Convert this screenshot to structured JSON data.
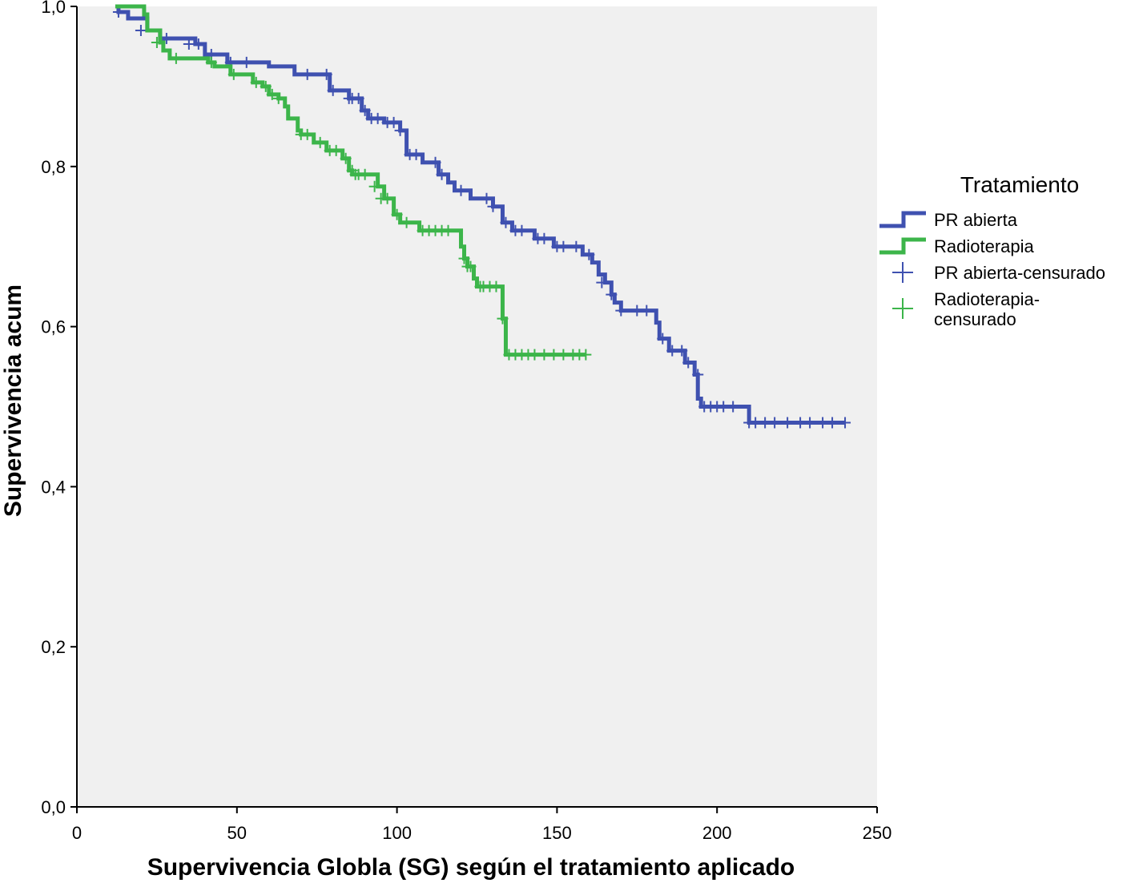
{
  "chart_data": {
    "type": "line",
    "subtype": "kaplan-meier step",
    "title": "",
    "xlabel": "Supervivencia Globla (SG) según el tratamiento aplicado",
    "ylabel": "Supervivencia acum",
    "xlim": [
      0,
      250
    ],
    "ylim": [
      0.0,
      1.0
    ],
    "x_ticks": [
      0,
      50,
      100,
      150,
      200,
      250
    ],
    "x_tick_labels": [
      "0",
      "50",
      "100",
      "150",
      "200",
      "250"
    ],
    "y_ticks": [
      0.0,
      0.2,
      0.4,
      0.6,
      0.8,
      1.0
    ],
    "y_tick_labels": [
      "0,0",
      "0,2",
      "0,4",
      "0,6",
      "0,8",
      "1,0"
    ],
    "grid": false,
    "plot_background": "#f0f0f0",
    "legend": {
      "title": "Tratamiento",
      "position": "right",
      "entries": [
        {
          "label": "PR abierta",
          "kind": "line",
          "color": "#3f51b0"
        },
        {
          "label": "Radioterapia",
          "kind": "line",
          "color": "#3cb54a"
        },
        {
          "label": "PR abierta-censurado",
          "kind": "marker",
          "color": "#3f51b0"
        },
        {
          "label_lines": [
            "Radioterapia-",
            "censurado"
          ],
          "kind": "marker",
          "color": "#3cb54a"
        }
      ]
    },
    "series": [
      {
        "name": "PR abierta",
        "color": "#3f51b0",
        "steps": [
          [
            12,
            1.0
          ],
          [
            13,
            0.993
          ],
          [
            16,
            0.985
          ],
          [
            22,
            0.97
          ],
          [
            26,
            0.96
          ],
          [
            37,
            0.953
          ],
          [
            40,
            0.94
          ],
          [
            47,
            0.93
          ],
          [
            60,
            0.925
          ],
          [
            68,
            0.915
          ],
          [
            79,
            0.895
          ],
          [
            85,
            0.885
          ],
          [
            89,
            0.87
          ],
          [
            91,
            0.86
          ],
          [
            96,
            0.855
          ],
          [
            101,
            0.845
          ],
          [
            103,
            0.815
          ],
          [
            108,
            0.805
          ],
          [
            113,
            0.79
          ],
          [
            116,
            0.78
          ],
          [
            118,
            0.77
          ],
          [
            123,
            0.76
          ],
          [
            130,
            0.75
          ],
          [
            133,
            0.73
          ],
          [
            136,
            0.72
          ],
          [
            143,
            0.71
          ],
          [
            149,
            0.7
          ],
          [
            158,
            0.69
          ],
          [
            161,
            0.68
          ],
          [
            163,
            0.665
          ],
          [
            165,
            0.655
          ],
          [
            167,
            0.64
          ],
          [
            168,
            0.63
          ],
          [
            170,
            0.62
          ],
          [
            181,
            0.605
          ],
          [
            182,
            0.585
          ],
          [
            185,
            0.57
          ],
          [
            190,
            0.555
          ],
          [
            193,
            0.54
          ],
          [
            194,
            0.51
          ],
          [
            195,
            0.5
          ],
          [
            210,
            0.48
          ]
        ],
        "end_x": 240,
        "censored": [
          [
            13,
            0.993
          ],
          [
            20,
            0.97
          ],
          [
            28,
            0.96
          ],
          [
            35,
            0.953
          ],
          [
            38,
            0.953
          ],
          [
            42,
            0.94
          ],
          [
            48,
            0.93
          ],
          [
            53,
            0.93
          ],
          [
            72,
            0.915
          ],
          [
            78,
            0.915
          ],
          [
            80,
            0.895
          ],
          [
            85,
            0.885
          ],
          [
            86,
            0.885
          ],
          [
            88,
            0.885
          ],
          [
            90,
            0.87
          ],
          [
            92,
            0.86
          ],
          [
            94,
            0.86
          ],
          [
            97,
            0.855
          ],
          [
            99,
            0.855
          ],
          [
            101,
            0.845
          ],
          [
            104,
            0.815
          ],
          [
            106,
            0.815
          ],
          [
            112,
            0.805
          ],
          [
            114,
            0.79
          ],
          [
            120,
            0.77
          ],
          [
            128,
            0.76
          ],
          [
            130,
            0.75
          ],
          [
            134,
            0.73
          ],
          [
            137,
            0.72
          ],
          [
            139,
            0.72
          ],
          [
            144,
            0.71
          ],
          [
            146,
            0.71
          ],
          [
            150,
            0.7
          ],
          [
            152,
            0.7
          ],
          [
            156,
            0.7
          ],
          [
            160,
            0.69
          ],
          [
            164,
            0.655
          ],
          [
            167,
            0.64
          ],
          [
            170,
            0.62
          ],
          [
            175,
            0.62
          ],
          [
            178,
            0.62
          ],
          [
            183,
            0.585
          ],
          [
            186,
            0.57
          ],
          [
            189,
            0.57
          ],
          [
            191,
            0.555
          ],
          [
            194,
            0.54
          ],
          [
            196,
            0.5
          ],
          [
            198,
            0.5
          ],
          [
            200,
            0.5
          ],
          [
            202,
            0.5
          ],
          [
            205,
            0.5
          ],
          [
            210,
            0.48
          ],
          [
            212,
            0.48
          ],
          [
            215,
            0.48
          ],
          [
            218,
            0.48
          ],
          [
            222,
            0.48
          ],
          [
            226,
            0.48
          ],
          [
            229,
            0.48
          ],
          [
            233,
            0.48
          ],
          [
            236,
            0.48
          ],
          [
            240,
            0.48
          ]
        ]
      },
      {
        "name": "Radioterapia",
        "color": "#3cb54a",
        "steps": [
          [
            12,
            1.0
          ],
          [
            21,
            0.99
          ],
          [
            22,
            0.97
          ],
          [
            26,
            0.955
          ],
          [
            27,
            0.945
          ],
          [
            29,
            0.935
          ],
          [
            41,
            0.93
          ],
          [
            43,
            0.925
          ],
          [
            48,
            0.915
          ],
          [
            55,
            0.905
          ],
          [
            58,
            0.9
          ],
          [
            60,
            0.89
          ],
          [
            63,
            0.885
          ],
          [
            65,
            0.875
          ],
          [
            66,
            0.86
          ],
          [
            69,
            0.845
          ],
          [
            70,
            0.84
          ],
          [
            74,
            0.83
          ],
          [
            78,
            0.82
          ],
          [
            83,
            0.81
          ],
          [
            85,
            0.795
          ],
          [
            86,
            0.79
          ],
          [
            94,
            0.775
          ],
          [
            96,
            0.76
          ],
          [
            99,
            0.74
          ],
          [
            101,
            0.73
          ],
          [
            107,
            0.72
          ],
          [
            120,
            0.7
          ],
          [
            121,
            0.685
          ],
          [
            122,
            0.675
          ],
          [
            124,
            0.66
          ],
          [
            125,
            0.65
          ],
          [
            133,
            0.61
          ],
          [
            134,
            0.565
          ]
        ],
        "end_x": 159,
        "censored": [
          [
            25,
            0.955
          ],
          [
            31,
            0.935
          ],
          [
            42,
            0.93
          ],
          [
            49,
            0.915
          ],
          [
            56,
            0.905
          ],
          [
            59,
            0.9
          ],
          [
            61,
            0.89
          ],
          [
            63,
            0.885
          ],
          [
            70,
            0.84
          ],
          [
            72,
            0.84
          ],
          [
            76,
            0.83
          ],
          [
            79,
            0.82
          ],
          [
            81,
            0.82
          ],
          [
            84,
            0.81
          ],
          [
            86,
            0.795
          ],
          [
            87,
            0.79
          ],
          [
            88,
            0.79
          ],
          [
            90,
            0.79
          ],
          [
            93,
            0.775
          ],
          [
            95,
            0.76
          ],
          [
            97,
            0.76
          ],
          [
            100,
            0.74
          ],
          [
            103,
            0.73
          ],
          [
            108,
            0.72
          ],
          [
            110,
            0.72
          ],
          [
            112,
            0.72
          ],
          [
            114,
            0.72
          ],
          [
            116,
            0.72
          ],
          [
            121,
            0.685
          ],
          [
            122,
            0.675
          ],
          [
            123,
            0.675
          ],
          [
            126,
            0.65
          ],
          [
            127,
            0.65
          ],
          [
            129,
            0.65
          ],
          [
            131,
            0.65
          ],
          [
            133,
            0.61
          ],
          [
            135,
            0.565
          ],
          [
            137,
            0.565
          ],
          [
            139,
            0.565
          ],
          [
            141,
            0.565
          ],
          [
            143,
            0.565
          ],
          [
            146,
            0.565
          ],
          [
            149,
            0.565
          ],
          [
            152,
            0.565
          ],
          [
            155,
            0.565
          ],
          [
            157,
            0.565
          ],
          [
            159,
            0.565
          ]
        ]
      }
    ]
  }
}
